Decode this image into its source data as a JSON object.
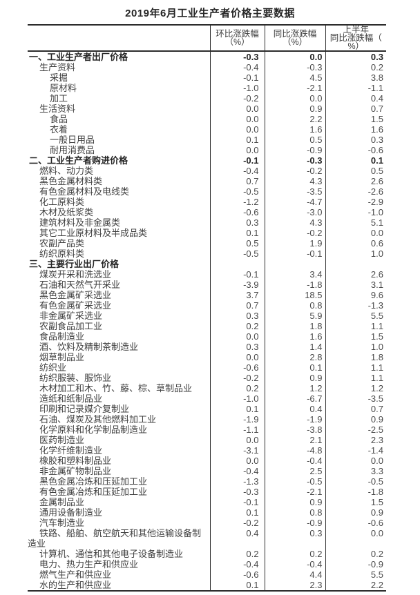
{
  "page": {
    "title": "2019年6月工业生产者价格主要数据"
  },
  "table": {
    "corner": "",
    "col_headers": [
      "环比涨跌幅\n（%）",
      "同比涨跌幅\n（%）",
      "上半年\n同比涨跌幅（\n%）"
    ],
    "rows": [
      {
        "label": "一、工业生产者出厂价格",
        "level": 0,
        "bold": true,
        "values": [
          "-0.3",
          "0.0",
          "0.3"
        ]
      },
      {
        "label": "生产资料",
        "level": 1,
        "bold": false,
        "values": [
          "-0.4",
          "-0.3",
          "0.2"
        ]
      },
      {
        "label": "采掘",
        "level": 2,
        "bold": false,
        "values": [
          "-0.1",
          "4.5",
          "3.8"
        ]
      },
      {
        "label": "原材料",
        "level": 2,
        "bold": false,
        "values": [
          "-1.0",
          "-2.1",
          "-1.1"
        ]
      },
      {
        "label": "加工",
        "level": 2,
        "bold": false,
        "values": [
          "-0.2",
          "0.0",
          "0.4"
        ]
      },
      {
        "label": "生活资料",
        "level": 1,
        "bold": false,
        "values": [
          "0.0",
          "0.9",
          "0.7"
        ]
      },
      {
        "label": "食品",
        "level": 2,
        "bold": false,
        "values": [
          "0.0",
          "2.2",
          "1.5"
        ]
      },
      {
        "label": "衣着",
        "level": 2,
        "bold": false,
        "values": [
          "0.0",
          "1.6",
          "1.6"
        ]
      },
      {
        "label": "一般日用品",
        "level": 2,
        "bold": false,
        "values": [
          "0.1",
          "0.5",
          "0.3"
        ]
      },
      {
        "label": "耐用消费品",
        "level": 2,
        "bold": false,
        "values": [
          "0.0",
          "-0.9",
          "-0.6"
        ]
      },
      {
        "label": "二、工业生产者购进价格",
        "level": 0,
        "bold": true,
        "values": [
          "-0.1",
          "-0.3",
          "0.1"
        ]
      },
      {
        "label": "燃料、动力类",
        "level": 1,
        "bold": false,
        "values": [
          "-0.4",
          "-0.2",
          "0.5"
        ]
      },
      {
        "label": "黑色金属材料类",
        "level": 1,
        "bold": false,
        "values": [
          "0.7",
          "4.3",
          "2.6"
        ]
      },
      {
        "label": "有色金属材料及电线类",
        "level": 1,
        "bold": false,
        "values": [
          "-0.5",
          "-3.5",
          "-2.6"
        ]
      },
      {
        "label": "化工原料类",
        "level": 1,
        "bold": false,
        "values": [
          "-1.2",
          "-4.7",
          "-2.9"
        ]
      },
      {
        "label": "木材及纸浆类",
        "level": 1,
        "bold": false,
        "values": [
          "-0.6",
          "-3.0",
          "-1.0"
        ]
      },
      {
        "label": "建筑材料及非金属类",
        "level": 1,
        "bold": false,
        "values": [
          "0.3",
          "4.3",
          "5.1"
        ]
      },
      {
        "label": "其它工业原材料及半成品类",
        "level": 1,
        "bold": false,
        "values": [
          "0.1",
          "-0.2",
          "0.0"
        ]
      },
      {
        "label": "农副产品类",
        "level": 1,
        "bold": false,
        "values": [
          "0.5",
          "1.9",
          "0.6"
        ]
      },
      {
        "label": "纺织原料类",
        "level": 1,
        "bold": false,
        "values": [
          "-0.5",
          "-0.1",
          "1.0"
        ]
      },
      {
        "label": "三、主要行业出厂价格",
        "level": 0,
        "bold": true,
        "values": [
          "",
          "",
          ""
        ]
      },
      {
        "label": "煤炭开采和洗选业",
        "level": 1,
        "bold": false,
        "values": [
          "-0.1",
          "3.4",
          "2.6"
        ]
      },
      {
        "label": "石油和天然气开采业",
        "level": 1,
        "bold": false,
        "values": [
          "-3.9",
          "-1.8",
          "3.1"
        ]
      },
      {
        "label": "黑色金属矿采选业",
        "level": 1,
        "bold": false,
        "values": [
          "3.7",
          "18.5",
          "9.6"
        ]
      },
      {
        "label": "有色金属矿采选业",
        "level": 1,
        "bold": false,
        "values": [
          "0.7",
          "0.8",
          "-1.3"
        ]
      },
      {
        "label": "非金属矿采选业",
        "level": 1,
        "bold": false,
        "values": [
          "0.3",
          "5.9",
          "5.5"
        ]
      },
      {
        "label": "农副食品加工业",
        "level": 1,
        "bold": false,
        "values": [
          "0.2",
          "1.8",
          "1.1"
        ]
      },
      {
        "label": "食品制造业",
        "level": 1,
        "bold": false,
        "values": [
          "0.0",
          "1.6",
          "1.5"
        ]
      },
      {
        "label": "酒、饮料及精制茶制造业",
        "level": 1,
        "bold": false,
        "values": [
          "0.3",
          "1.4",
          "1.0"
        ]
      },
      {
        "label": "烟草制品业",
        "level": 1,
        "bold": false,
        "values": [
          "0.0",
          "2.8",
          "1.8"
        ]
      },
      {
        "label": "纺织业",
        "level": 1,
        "bold": false,
        "values": [
          "-0.6",
          "0.1",
          "1.1"
        ]
      },
      {
        "label": "纺织服装、服饰业",
        "level": 1,
        "bold": false,
        "values": [
          "-0.2",
          "0.9",
          "1.1"
        ]
      },
      {
        "label": "木材加工和木、竹、藤、棕、草制品业",
        "level": 1,
        "bold": false,
        "values": [
          "0.2",
          "1.2",
          "1.2"
        ]
      },
      {
        "label": "造纸和纸制品业",
        "level": 1,
        "bold": false,
        "values": [
          "-1.0",
          "-6.7",
          "-3.5"
        ]
      },
      {
        "label": "印刷和记录媒介复制业",
        "level": 1,
        "bold": false,
        "values": [
          "0.1",
          "0.4",
          "0.7"
        ]
      },
      {
        "label": "石油、煤炭及其他燃料加工业",
        "level": 1,
        "bold": false,
        "values": [
          "-1.9",
          "-1.9",
          "0.9"
        ]
      },
      {
        "label": "化学原料和化学制品制造业",
        "level": 1,
        "bold": false,
        "values": [
          "-1.1",
          "-3.8",
          "-2.5"
        ]
      },
      {
        "label": "医药制造业",
        "level": 1,
        "bold": false,
        "values": [
          "0.0",
          "2.1",
          "2.3"
        ]
      },
      {
        "label": "化学纤维制造业",
        "level": 1,
        "bold": false,
        "values": [
          "-3.1",
          "-4.8",
          "-1.4"
        ]
      },
      {
        "label": "橡胶和塑料制品业",
        "level": 1,
        "bold": false,
        "values": [
          "0.0",
          "-0.4",
          "0.0"
        ]
      },
      {
        "label": "非金属矿物制品业",
        "level": 1,
        "bold": false,
        "values": [
          "-0.4",
          "2.5",
          "3.3"
        ]
      },
      {
        "label": "黑色金属冶炼和压延加工业",
        "level": 1,
        "bold": false,
        "values": [
          "-1.3",
          "-0.5",
          "-0.5"
        ]
      },
      {
        "label": "有色金属冶炼和压延加工业",
        "level": 1,
        "bold": false,
        "values": [
          "-0.3",
          "-2.1",
          "-1.8"
        ]
      },
      {
        "label": "金属制品业",
        "level": 1,
        "bold": false,
        "values": [
          "-0.1",
          "0.9",
          "1.5"
        ]
      },
      {
        "label": "通用设备制造业",
        "level": 1,
        "bold": false,
        "values": [
          "0.1",
          "0.8",
          "0.9"
        ]
      },
      {
        "label": "汽车制造业",
        "level": 1,
        "bold": false,
        "values": [
          "-0.2",
          "-0.9",
          "-0.6"
        ]
      },
      {
        "label": "铁路、船舶、航空航天和其他运输设备制造业",
        "level": 1,
        "bold": false,
        "values": [
          "0.4",
          "0.3",
          "0.0"
        ]
      },
      {
        "label": "计算机、通信和其他电子设备制造业",
        "level": 1,
        "bold": false,
        "values": [
          "0.2",
          "0.2",
          "0.2"
        ]
      },
      {
        "label": "电力、热力生产和供应业",
        "level": 1,
        "bold": false,
        "values": [
          "-0.4",
          "-0.4",
          "-0.9"
        ]
      },
      {
        "label": "燃气生产和供应业",
        "level": 1,
        "bold": false,
        "values": [
          "-0.6",
          "4.4",
          "5.5"
        ]
      },
      {
        "label": "水的生产和供应业",
        "level": 1,
        "bold": false,
        "values": [
          "0.1",
          "2.3",
          "2.2"
        ]
      }
    ]
  }
}
